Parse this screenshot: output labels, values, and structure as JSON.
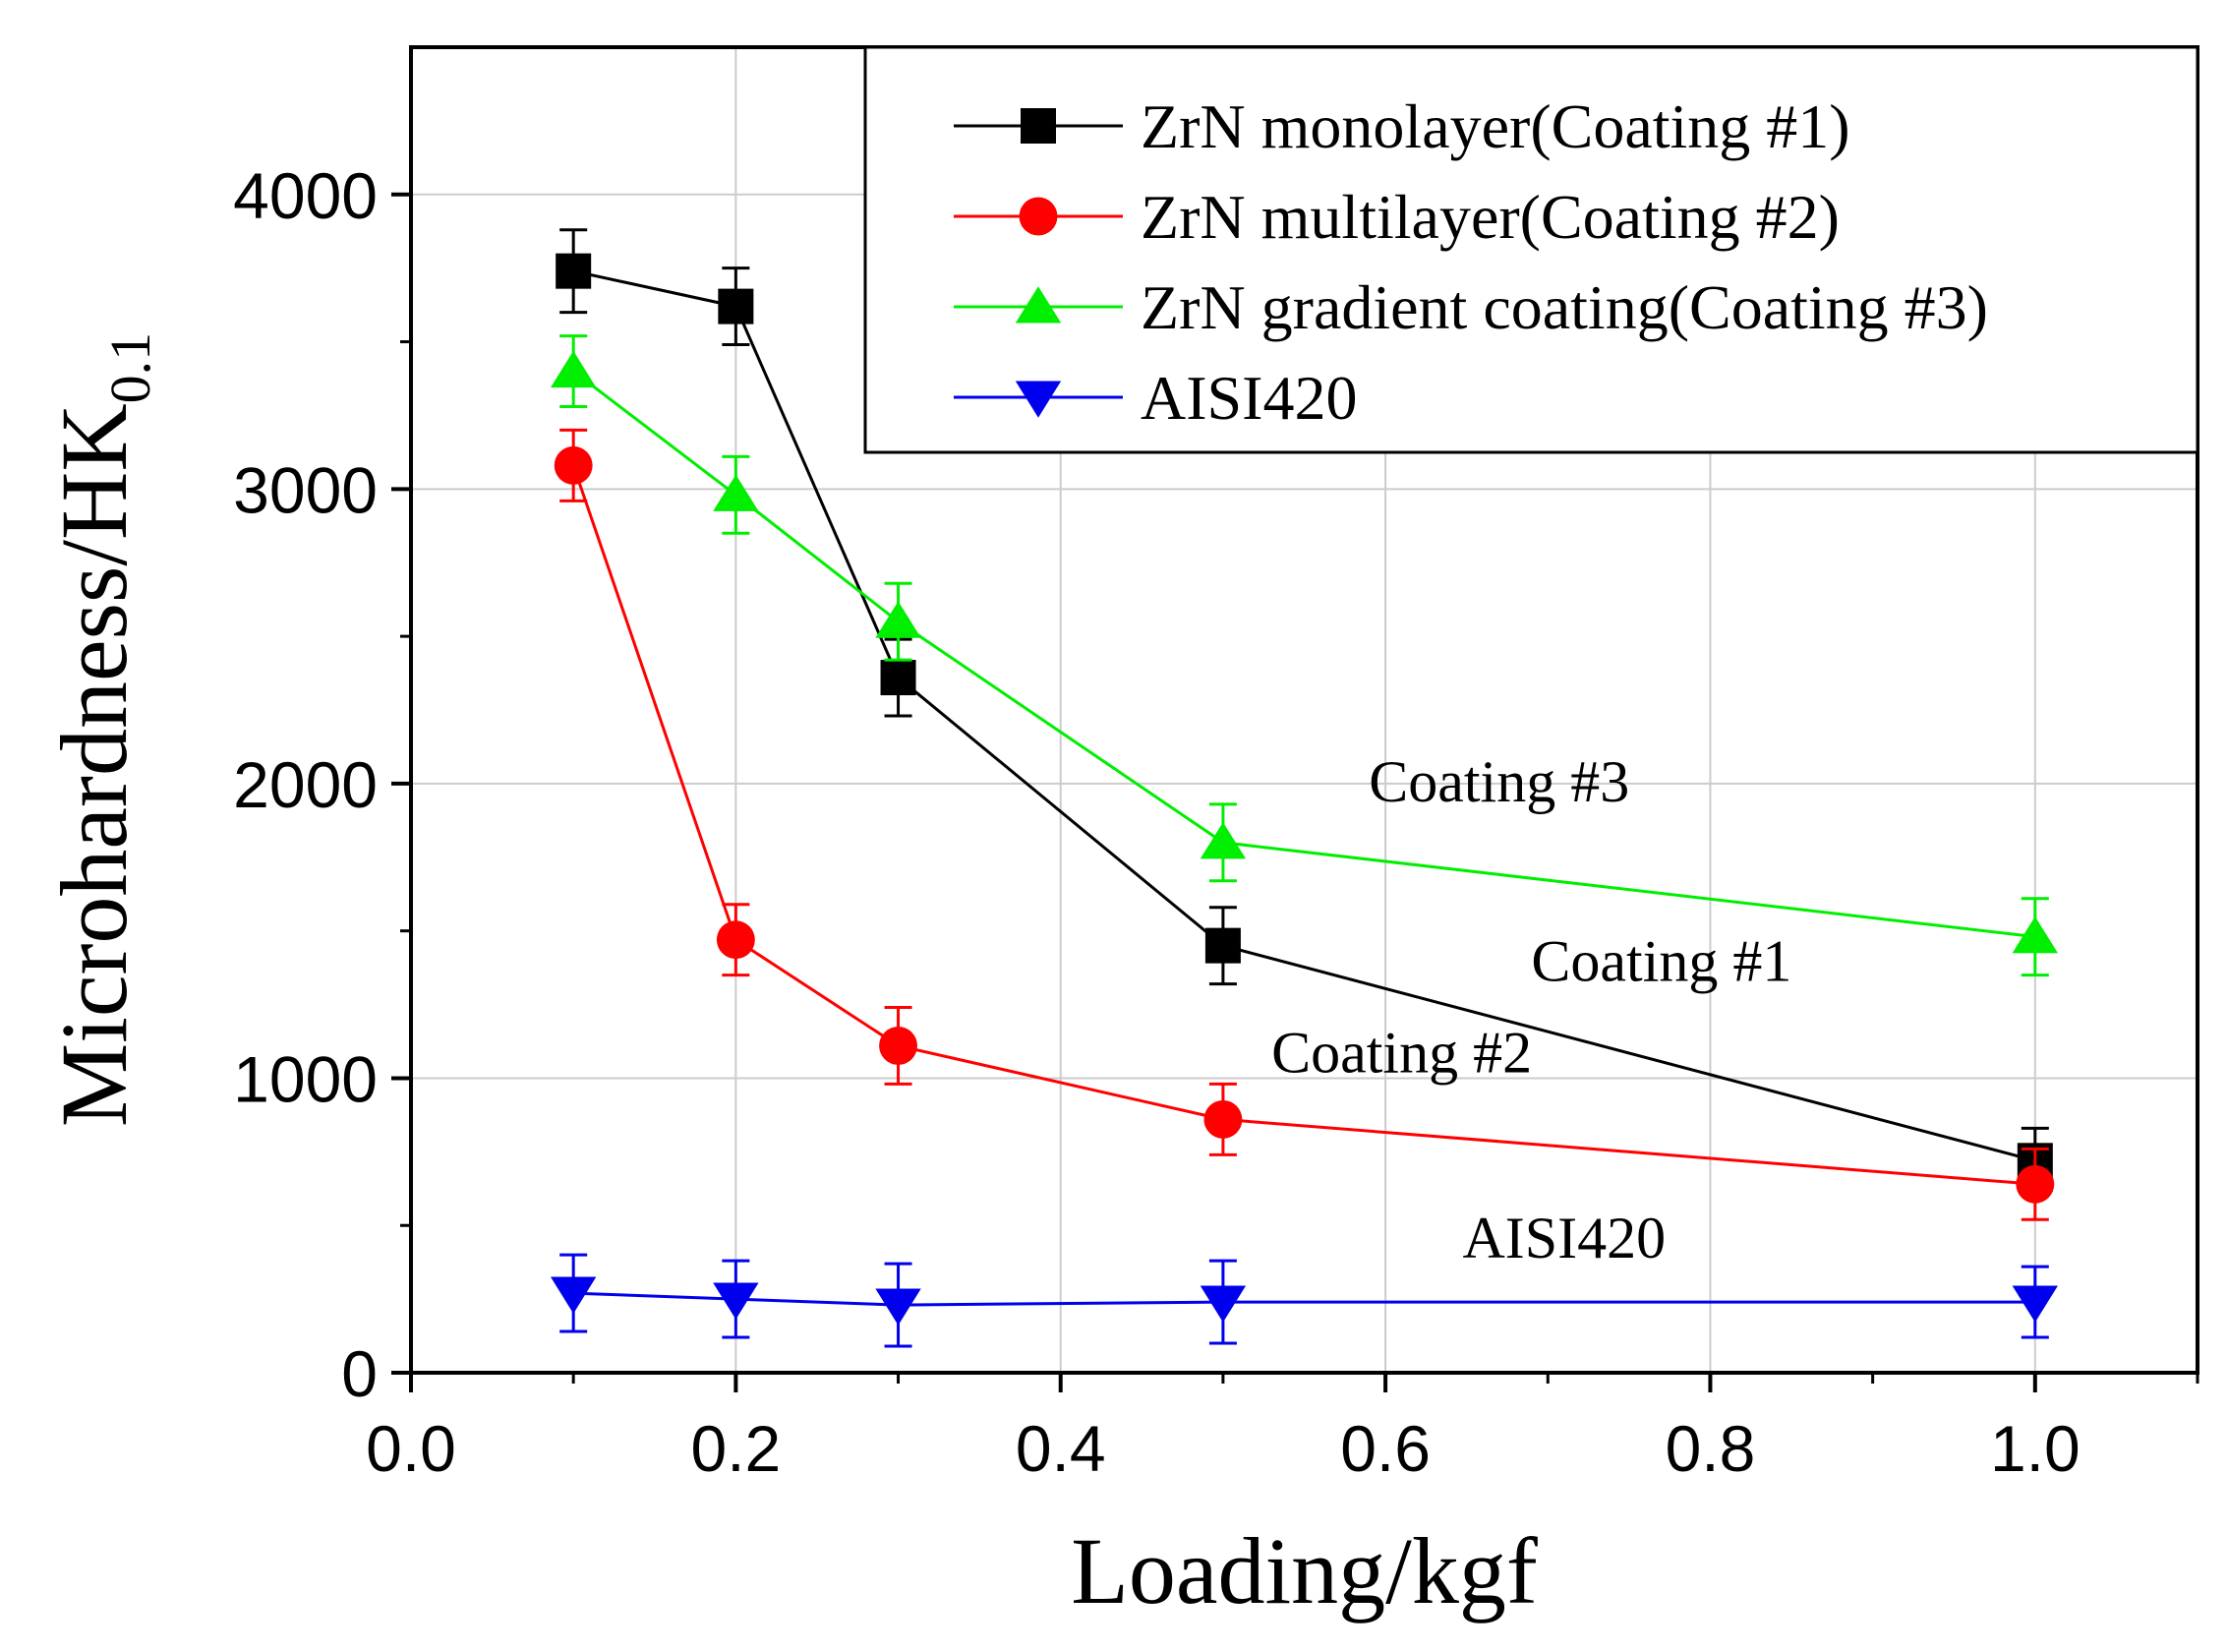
{
  "chart_data": {
    "type": "line",
    "title": "",
    "xlabel": "Loading/kgf",
    "ylabel": "Microhardness/HK",
    "ylabel_subscript": "0.1",
    "xlim": [
      0.0,
      1.1
    ],
    "ylim": [
      0,
      4500
    ],
    "x_ticks": [
      0.0,
      0.2,
      0.4,
      0.6,
      0.8,
      1.0
    ],
    "x_tick_labels": [
      "0.0",
      "0.2",
      "0.4",
      "0.6",
      "0.8",
      "1.0"
    ],
    "y_ticks": [
      0,
      1000,
      2000,
      3000,
      4000
    ],
    "y_tick_labels": [
      "0",
      "1000",
      "2000",
      "3000",
      "4000"
    ],
    "grid": true,
    "legend_position": "top-right",
    "x": [
      0.1,
      0.2,
      0.3,
      0.5,
      1.0
    ],
    "series": [
      {
        "name": "ZrN monolayer(Coating #1)",
        "color": "#000000",
        "marker": "square",
        "values": [
          3740,
          3620,
          2360,
          1450,
          720
        ],
        "errors": [
          140,
          130,
          130,
          130,
          110
        ]
      },
      {
        "name": "ZrN multilayer(Coating #2)",
        "color": "#ff0000",
        "marker": "circle",
        "values": [
          3080,
          1470,
          1110,
          860,
          640
        ],
        "errors": [
          120,
          120,
          130,
          120,
          120
        ]
      },
      {
        "name": "ZrN gradient coating(Coating #3)",
        "color": "#00ee00",
        "marker": "triangle-up",
        "values": [
          3400,
          2980,
          2550,
          1800,
          1480
        ],
        "errors": [
          120,
          130,
          130,
          130,
          130
        ]
      },
      {
        "name": "AISI420",
        "color": "#0000ee",
        "marker": "triangle-down",
        "values": [
          270,
          250,
          230,
          240,
          240
        ],
        "errors": [
          130,
          130,
          140,
          140,
          120
        ]
      }
    ],
    "annotations": [
      {
        "text": "Coating #3",
        "x": 0.67,
        "y": 1940
      },
      {
        "text": "Coating #1",
        "x": 0.77,
        "y": 1330
      },
      {
        "text": "Coating #2",
        "x": 0.61,
        "y": 1020
      },
      {
        "text": "AISI420",
        "x": 0.71,
        "y": 390
      }
    ]
  }
}
